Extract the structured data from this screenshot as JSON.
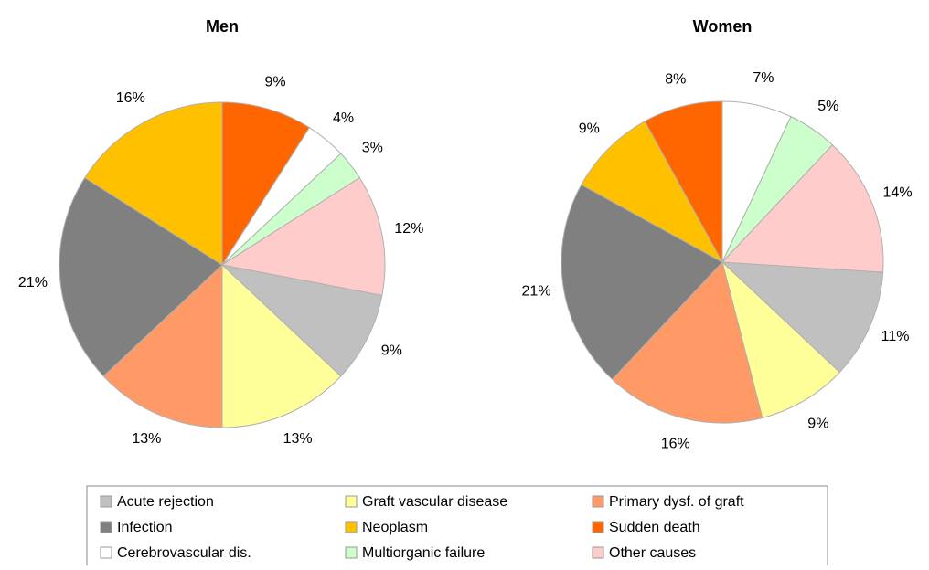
{
  "chart_data": [
    {
      "type": "pie",
      "title": "Men",
      "categories": [
        "Acute rejection",
        "Graft vascular disease",
        "Primary dysf. of graft",
        "Infection",
        "Neoplasm",
        "Sudden death",
        "Cerebrovascular dis.",
        "Multiorganic failure",
        "Other causes"
      ],
      "values": [
        9,
        13,
        13,
        21,
        16,
        9,
        4,
        3,
        12
      ],
      "value_labels": [
        "9%",
        "13%",
        "13%",
        "21%",
        "16%",
        "9%",
        "4%",
        "3%",
        "12%"
      ],
      "colors": [
        "#c0c0c0",
        "#ffff99",
        "#ff9966",
        "#808080",
        "#ffc000",
        "#ff6600",
        "#ffffff",
        "#ccffcc",
        "#ffcccc"
      ],
      "startangle": 100.8
    },
    {
      "type": "pie",
      "title": "Women",
      "categories": [
        "Acute rejection",
        "Graft vascular disease",
        "Primary dysf. of graft",
        "Infection",
        "Neoplasm",
        "Sudden death",
        "Cerebrovascular dis.",
        "Multiorganic failure",
        "Other causes"
      ],
      "values": [
        11,
        9,
        16,
        21,
        9,
        8,
        7,
        5,
        14
      ],
      "value_labels": [
        "11%",
        "9%",
        "16%",
        "21%",
        "9%",
        "8%",
        "7%",
        "5%",
        "14%"
      ],
      "colors": [
        "#c0c0c0",
        "#ffff99",
        "#ff9966",
        "#808080",
        "#ffc000",
        "#ff6600",
        "#ffffff",
        "#ccffcc",
        "#ffcccc"
      ],
      "startangle": 93.6
    }
  ]
}
